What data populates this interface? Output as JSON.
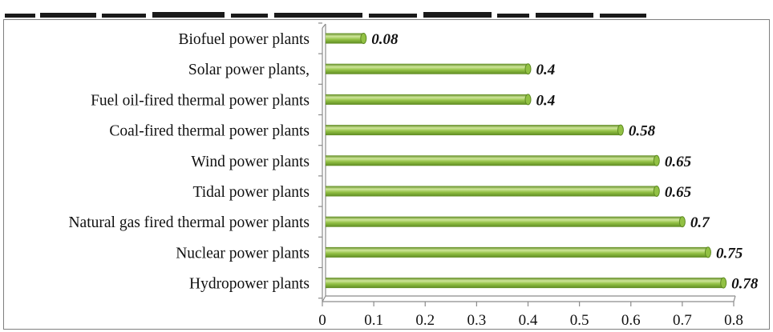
{
  "chart_data": {
    "type": "bar",
    "orientation": "horizontal",
    "title": "",
    "xlabel": "",
    "ylabel": "",
    "categories": [
      "Biofuel power plants",
      "Solar power plants,",
      "Fuel oil-fired thermal power plants",
      "Coal-fired thermal power plants",
      "Wind power plants",
      "Tidal power plants",
      "Natural gas fired thermal power plants",
      "Nuclear power plants",
      "Hydropower plants"
    ],
    "values": [
      0.08,
      0.4,
      0.4,
      0.58,
      0.65,
      0.65,
      0.7,
      0.75,
      0.78
    ],
    "value_labels": [
      "0.08",
      "0.4",
      "0.4",
      "0.58",
      "0.65",
      "0.65",
      "0.7",
      "0.75",
      "0.78"
    ],
    "xlim": [
      0,
      0.8
    ],
    "xticks": [
      "0",
      "0.1",
      "0.2",
      "0.3",
      "0.4",
      "0.5",
      "0.6",
      "0.7",
      "0.8"
    ],
    "grid": false,
    "legend": "none",
    "bar_style": "3d-cylinder",
    "colors": {
      "bar": "#92c144",
      "bar_light": "#cfe69a",
      "bar_dark": "#5e8a22",
      "axis": "#8c8c8c",
      "frame": "#7f7f7f"
    }
  }
}
